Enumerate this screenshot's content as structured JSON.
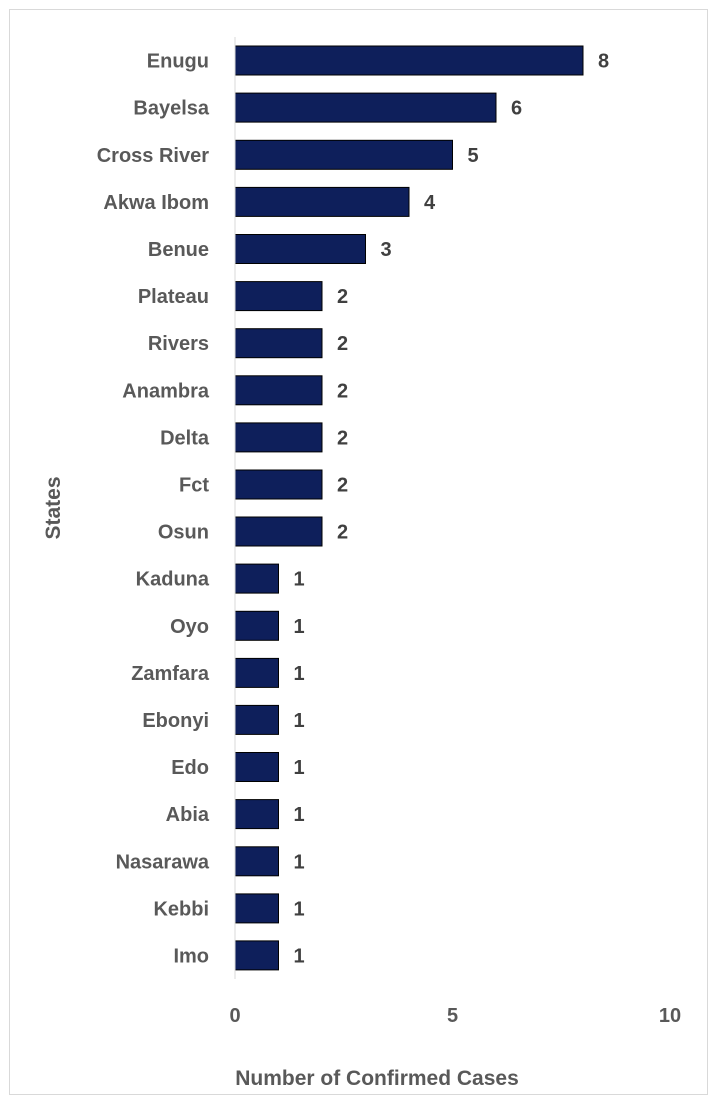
{
  "chart_data": {
    "type": "bar",
    "orientation": "horizontal",
    "categories": [
      "Enugu",
      "Bayelsa",
      "Cross River",
      "Akwa Ibom",
      "Benue",
      "Plateau",
      "Rivers",
      "Anambra",
      "Delta",
      "Fct",
      "Osun",
      "Kaduna",
      "Oyo",
      "Zamfara",
      "Ebonyi",
      "Edo",
      "Abia",
      "Nasarawa",
      "Kebbi",
      "Imo"
    ],
    "values": [
      8,
      6,
      5,
      4,
      3,
      2,
      2,
      2,
      2,
      2,
      2,
      1,
      1,
      1,
      1,
      1,
      1,
      1,
      1,
      1
    ],
    "xlabel": "Number of Confirmed Cases",
    "ylabel": "States",
    "xlim": [
      0,
      10
    ],
    "xticks": [
      0,
      5,
      10
    ],
    "grid": false,
    "legend": "none",
    "data_labels": true,
    "bar_color": "#0e1f5b",
    "bar_edge_color": "#000000"
  }
}
